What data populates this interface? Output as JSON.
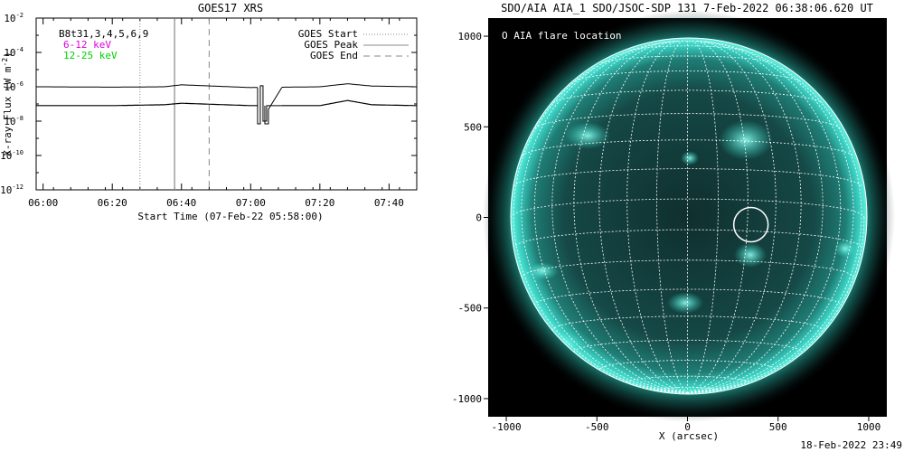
{
  "left_panel": {
    "title": "GOES17 XRS",
    "ylabel": "X-ray Flux (W m",
    "ylabel_sup": "-2",
    "ylabel_end": ")",
    "xlabel": "Start Time (07-Feb-22 05:58:00)",
    "channel_black": "B8t31,3,4,5,6,9",
    "channel_magenta": "6-12 keV",
    "channel_green": "12-25 keV",
    "legend": [
      "GOES Start",
      "GOES Peak",
      "GOES End"
    ],
    "y_tick_labels": [
      "10",
      "10",
      "10",
      "10",
      "10",
      "10"
    ],
    "y_tick_exps": [
      "-2",
      "-4",
      "-6",
      "-8",
      "-10",
      "-12"
    ],
    "x_tick_labels": [
      "06:00",
      "06:20",
      "06:40",
      "07:00",
      "07:20",
      "07:40"
    ],
    "colors": {
      "magenta": "#e000e0",
      "green": "#00d000"
    }
  },
  "right_panel": {
    "title": "SDO/AIA AIA_1 SDO/JSOC-SDP 131  7-Feb-2022 06:38:06.620 UT",
    "legend": "O AIA flare location",
    "xlabel": "X (arcsec)",
    "x_tick_labels": [
      "-1000",
      "-500",
      "0",
      "500",
      "1000"
    ],
    "y_tick_labels": [
      "1000",
      "500",
      "0",
      "-500",
      "-1000"
    ],
    "colors": {
      "sun_core": "#0d3a38",
      "sun_glow": "#2fd9c8",
      "background": "#000000"
    }
  },
  "footer": {
    "timestamp": "18-Feb-2022 23:49"
  },
  "chart_data": [
    {
      "type": "line",
      "title": "GOES17 XRS",
      "xlabel": "Start Time (07-Feb-22 05:58:00)",
      "ylabel": "X-ray Flux (W m^-2)",
      "y_scale": "log",
      "ylim": [
        1e-12,
        0.01
      ],
      "xlim": [
        "05:58",
        "07:48"
      ],
      "series": [
        {
          "name": "B8t31,3,4,5,6,9",
          "x": [
            "06:00",
            "06:20",
            "06:35",
            "06:40",
            "07:00",
            "07:20",
            "07:28",
            "07:35",
            "07:48"
          ],
          "values": [
            1e-06,
            9.5e-07,
            1e-06,
            1.3e-06,
            9e-07,
            1e-06,
            1.5e-06,
            1.1e-06,
            1e-06
          ]
        },
        {
          "name": "6-12 keV",
          "x": [
            "06:00",
            "06:20",
            "06:35",
            "06:40",
            "07:00",
            "07:20",
            "07:28",
            "07:35",
            "07:48"
          ],
          "values": [
            8e-08,
            8e-08,
            9e-08,
            1.1e-07,
            8e-08,
            8e-08,
            1.6e-07,
            9e-08,
            8e-08
          ]
        }
      ],
      "gap_interval": [
        "07:02",
        "07:09"
      ],
      "events": {
        "goes_start": "06:28",
        "goes_peak": "06:38",
        "goes_end": "06:48"
      },
      "legend_position": "top-right"
    },
    {
      "type": "heatmap",
      "title": "SDO/AIA AIA_1 SDO/JSOC-SDP 131  7-Feb-2022 06:38:06.620 UT",
      "xlabel": "X (arcsec)",
      "xlim": [
        -1100,
        1100
      ],
      "ylim": [
        -1100,
        1100
      ],
      "solar_radius_arcsec": 975,
      "flare_location": {
        "x": 350,
        "y": -40
      }
    }
  ]
}
